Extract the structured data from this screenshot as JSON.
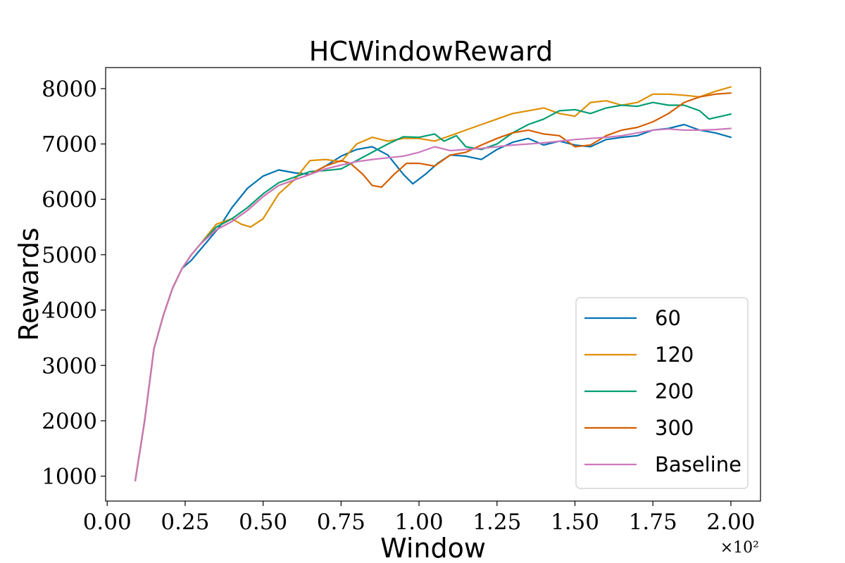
{
  "chart_data": {
    "type": "line",
    "title": "HCWindowReward",
    "xlabel": "Window",
    "ylabel": "Rewards",
    "x_offset_label": "×10²",
    "xlim": [
      -0.005,
      2.095
    ],
    "ylim": [
      550,
      8380
    ],
    "xticks": [
      0.0,
      0.25,
      0.5,
      0.75,
      1.0,
      1.25,
      1.5,
      1.75,
      2.0
    ],
    "xtick_labels": [
      "0.00",
      "0.25",
      "0.50",
      "0.75",
      "1.00",
      "1.25",
      "1.50",
      "1.75",
      "2.00"
    ],
    "yticks": [
      1000,
      2000,
      3000,
      4000,
      5000,
      6000,
      7000,
      8000
    ],
    "ytick_labels": [
      "1000",
      "2000",
      "3000",
      "4000",
      "5000",
      "6000",
      "7000",
      "8000"
    ],
    "grid": false,
    "legend_position": "lower-right",
    "series": [
      {
        "name": "60",
        "color": "#0173b2",
        "points": [
          [
            0.09,
            920
          ],
          [
            0.12,
            2000
          ],
          [
            0.15,
            3300
          ],
          [
            0.18,
            3900
          ],
          [
            0.21,
            4400
          ],
          [
            0.24,
            4750
          ],
          [
            0.27,
            4900
          ],
          [
            0.3,
            5100
          ],
          [
            0.33,
            5300
          ],
          [
            0.36,
            5500
          ],
          [
            0.4,
            5850
          ],
          [
            0.45,
            6200
          ],
          [
            0.5,
            6420
          ],
          [
            0.55,
            6530
          ],
          [
            0.6,
            6480
          ],
          [
            0.65,
            6450
          ],
          [
            0.7,
            6600
          ],
          [
            0.75,
            6780
          ],
          [
            0.8,
            6900
          ],
          [
            0.85,
            6950
          ],
          [
            0.9,
            6800
          ],
          [
            0.95,
            6450
          ],
          [
            0.98,
            6280
          ],
          [
            1.02,
            6450
          ],
          [
            1.06,
            6650
          ],
          [
            1.1,
            6800
          ],
          [
            1.15,
            6780
          ],
          [
            1.2,
            6720
          ],
          [
            1.25,
            6900
          ],
          [
            1.3,
            7030
          ],
          [
            1.35,
            7100
          ],
          [
            1.4,
            6980
          ],
          [
            1.45,
            7050
          ],
          [
            1.5,
            6980
          ],
          [
            1.55,
            6950
          ],
          [
            1.6,
            7080
          ],
          [
            1.65,
            7120
          ],
          [
            1.7,
            7150
          ],
          [
            1.75,
            7250
          ],
          [
            1.8,
            7280
          ],
          [
            1.85,
            7350
          ],
          [
            1.9,
            7250
          ],
          [
            1.95,
            7200
          ],
          [
            2.0,
            7120
          ]
        ]
      },
      {
        "name": "120",
        "color": "#de8f05",
        "points": [
          [
            0.09,
            920
          ],
          [
            0.12,
            2000
          ],
          [
            0.15,
            3300
          ],
          [
            0.18,
            3900
          ],
          [
            0.21,
            4400
          ],
          [
            0.24,
            4750
          ],
          [
            0.27,
            5000
          ],
          [
            0.3,
            5200
          ],
          [
            0.35,
            5550
          ],
          [
            0.4,
            5650
          ],
          [
            0.43,
            5550
          ],
          [
            0.46,
            5500
          ],
          [
            0.5,
            5650
          ],
          [
            0.55,
            6100
          ],
          [
            0.6,
            6350
          ],
          [
            0.65,
            6700
          ],
          [
            0.7,
            6720
          ],
          [
            0.75,
            6680
          ],
          [
            0.8,
            7000
          ],
          [
            0.85,
            7120
          ],
          [
            0.9,
            7050
          ],
          [
            0.95,
            7100
          ],
          [
            1.0,
            7100
          ],
          [
            1.05,
            7050
          ],
          [
            1.1,
            7150
          ],
          [
            1.15,
            7250
          ],
          [
            1.2,
            7350
          ],
          [
            1.25,
            7450
          ],
          [
            1.3,
            7550
          ],
          [
            1.35,
            7600
          ],
          [
            1.4,
            7650
          ],
          [
            1.45,
            7550
          ],
          [
            1.5,
            7500
          ],
          [
            1.55,
            7750
          ],
          [
            1.6,
            7780
          ],
          [
            1.65,
            7700
          ],
          [
            1.7,
            7750
          ],
          [
            1.75,
            7900
          ],
          [
            1.8,
            7900
          ],
          [
            1.85,
            7880
          ],
          [
            1.9,
            7850
          ],
          [
            1.95,
            7950
          ],
          [
            2.0,
            8030
          ]
        ]
      },
      {
        "name": "200",
        "color": "#029e73",
        "points": [
          [
            0.09,
            920
          ],
          [
            0.12,
            2000
          ],
          [
            0.15,
            3300
          ],
          [
            0.18,
            3900
          ],
          [
            0.21,
            4400
          ],
          [
            0.24,
            4750
          ],
          [
            0.27,
            5000
          ],
          [
            0.3,
            5200
          ],
          [
            0.35,
            5500
          ],
          [
            0.4,
            5650
          ],
          [
            0.45,
            5850
          ],
          [
            0.5,
            6100
          ],
          [
            0.55,
            6300
          ],
          [
            0.6,
            6400
          ],
          [
            0.65,
            6500
          ],
          [
            0.7,
            6520
          ],
          [
            0.75,
            6550
          ],
          [
            0.8,
            6700
          ],
          [
            0.85,
            6850
          ],
          [
            0.9,
            7000
          ],
          [
            0.95,
            7130
          ],
          [
            1.0,
            7120
          ],
          [
            1.05,
            7180
          ],
          [
            1.08,
            7050
          ],
          [
            1.12,
            7150
          ],
          [
            1.15,
            6950
          ],
          [
            1.2,
            6900
          ],
          [
            1.25,
            7000
          ],
          [
            1.3,
            7200
          ],
          [
            1.35,
            7350
          ],
          [
            1.4,
            7450
          ],
          [
            1.45,
            7600
          ],
          [
            1.5,
            7620
          ],
          [
            1.55,
            7550
          ],
          [
            1.6,
            7650
          ],
          [
            1.65,
            7700
          ],
          [
            1.7,
            7680
          ],
          [
            1.75,
            7750
          ],
          [
            1.8,
            7700
          ],
          [
            1.85,
            7700
          ],
          [
            1.9,
            7600
          ],
          [
            1.93,
            7450
          ],
          [
            1.97,
            7500
          ],
          [
            2.0,
            7540
          ]
        ]
      },
      {
        "name": "300",
        "color": "#d55e00",
        "points": [
          [
            0.09,
            920
          ],
          [
            0.12,
            2000
          ],
          [
            0.15,
            3300
          ],
          [
            0.18,
            3900
          ],
          [
            0.21,
            4400
          ],
          [
            0.24,
            4750
          ],
          [
            0.27,
            5000
          ],
          [
            0.3,
            5200
          ],
          [
            0.35,
            5450
          ],
          [
            0.4,
            5600
          ],
          [
            0.45,
            5800
          ],
          [
            0.5,
            6050
          ],
          [
            0.55,
            6250
          ],
          [
            0.6,
            6350
          ],
          [
            0.65,
            6450
          ],
          [
            0.7,
            6600
          ],
          [
            0.75,
            6700
          ],
          [
            0.78,
            6650
          ],
          [
            0.82,
            6450
          ],
          [
            0.85,
            6250
          ],
          [
            0.88,
            6220
          ],
          [
            0.92,
            6450
          ],
          [
            0.96,
            6650
          ],
          [
            1.0,
            6650
          ],
          [
            1.05,
            6600
          ],
          [
            1.1,
            6800
          ],
          [
            1.15,
            6850
          ],
          [
            1.2,
            6980
          ],
          [
            1.25,
            7100
          ],
          [
            1.3,
            7200
          ],
          [
            1.35,
            7250
          ],
          [
            1.4,
            7180
          ],
          [
            1.45,
            7150
          ],
          [
            1.5,
            6950
          ],
          [
            1.55,
            6980
          ],
          [
            1.6,
            7150
          ],
          [
            1.65,
            7250
          ],
          [
            1.7,
            7300
          ],
          [
            1.75,
            7400
          ],
          [
            1.8,
            7550
          ],
          [
            1.85,
            7750
          ],
          [
            1.9,
            7850
          ],
          [
            1.95,
            7900
          ],
          [
            2.0,
            7920
          ]
        ]
      },
      {
        "name": "Baseline",
        "color": "#cc78bc",
        "points": [
          [
            0.09,
            920
          ],
          [
            0.12,
            2000
          ],
          [
            0.15,
            3300
          ],
          [
            0.18,
            3900
          ],
          [
            0.21,
            4400
          ],
          [
            0.24,
            4750
          ],
          [
            0.27,
            5000
          ],
          [
            0.3,
            5200
          ],
          [
            0.35,
            5450
          ],
          [
            0.4,
            5600
          ],
          [
            0.45,
            5800
          ],
          [
            0.5,
            6050
          ],
          [
            0.55,
            6250
          ],
          [
            0.6,
            6350
          ],
          [
            0.65,
            6450
          ],
          [
            0.7,
            6550
          ],
          [
            0.75,
            6620
          ],
          [
            0.8,
            6680
          ],
          [
            0.85,
            6720
          ],
          [
            0.9,
            6750
          ],
          [
            0.95,
            6780
          ],
          [
            1.0,
            6850
          ],
          [
            1.05,
            6950
          ],
          [
            1.1,
            6880
          ],
          [
            1.15,
            6900
          ],
          [
            1.2,
            6920
          ],
          [
            1.25,
            6950
          ],
          [
            1.3,
            6980
          ],
          [
            1.35,
            7000
          ],
          [
            1.4,
            7020
          ],
          [
            1.45,
            7050
          ],
          [
            1.5,
            7080
          ],
          [
            1.55,
            7100
          ],
          [
            1.6,
            7120
          ],
          [
            1.65,
            7150
          ],
          [
            1.7,
            7200
          ],
          [
            1.75,
            7250
          ],
          [
            1.8,
            7270
          ],
          [
            1.85,
            7250
          ],
          [
            1.9,
            7250
          ],
          [
            1.95,
            7260
          ],
          [
            2.0,
            7280
          ]
        ]
      }
    ]
  }
}
